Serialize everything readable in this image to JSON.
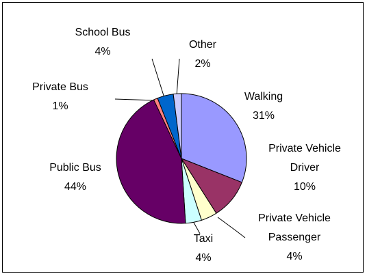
{
  "chart_data": {
    "type": "pie",
    "categories": [
      "Walking",
      "Private Vehicle Driver",
      "Private Vehicle Passenger",
      "Taxi",
      "Public Bus",
      "Private Bus",
      "School Bus",
      "Other"
    ],
    "values": [
      31,
      10,
      4,
      4,
      44,
      1,
      4,
      2
    ],
    "value_labels": [
      "31%",
      "10%",
      "4%",
      "4%",
      "44%",
      "1%",
      "4%",
      "2%"
    ],
    "colors": [
      "#9999ff",
      "#993366",
      "#ffffcc",
      "#ccffff",
      "#660066",
      "#ff8080",
      "#0066cc",
      "#ccccff"
    ]
  }
}
